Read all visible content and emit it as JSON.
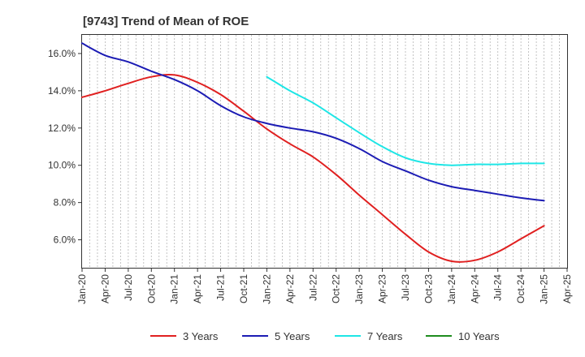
{
  "chart_data": {
    "type": "line",
    "title": "[9743]  Trend of Mean of ROE",
    "xlabel": "",
    "ylabel": "",
    "x_tick_labels": [
      "Jan-20",
      "Apr-20",
      "Jul-20",
      "Oct-20",
      "Jan-21",
      "Apr-21",
      "Jul-21",
      "Oct-21",
      "Jan-22",
      "Apr-22",
      "Jul-22",
      "Oct-22",
      "Jan-23",
      "Apr-23",
      "Jul-23",
      "Oct-23",
      "Jan-24",
      "Apr-24",
      "Jul-24",
      "Oct-24",
      "Jan-25",
      "Apr-25"
    ],
    "y_ticks": [
      6.0,
      8.0,
      10.0,
      12.0,
      14.0,
      16.0
    ],
    "y_tick_labels": [
      "6.0%",
      "8.0%",
      "10.0%",
      "12.0%",
      "14.0%",
      "16.0%"
    ],
    "ylim": [
      4.5,
      17.0
    ],
    "x_range_months": [
      0,
      63
    ],
    "grid": "vertical-dashed",
    "legend_position": "bottom",
    "series": [
      {
        "name": "3 Years",
        "color": "#e02020",
        "points": [
          [
            0,
            13.65
          ],
          [
            3,
            14.0
          ],
          [
            6,
            14.4
          ],
          [
            9,
            14.75
          ],
          [
            12,
            14.85
          ],
          [
            15,
            14.45
          ],
          [
            18,
            13.8
          ],
          [
            21,
            12.9
          ],
          [
            24,
            11.95
          ],
          [
            27,
            11.15
          ],
          [
            30,
            10.45
          ],
          [
            33,
            9.5
          ],
          [
            36,
            8.4
          ],
          [
            39,
            7.35
          ],
          [
            42,
            6.3
          ],
          [
            45,
            5.35
          ],
          [
            48,
            4.85
          ],
          [
            51,
            4.9
          ],
          [
            54,
            5.35
          ],
          [
            57,
            6.05
          ],
          [
            60,
            6.75
          ]
        ]
      },
      {
        "name": "5 Years",
        "color": "#1c1cb4",
        "points": [
          [
            0,
            16.55
          ],
          [
            3,
            15.9
          ],
          [
            6,
            15.55
          ],
          [
            9,
            15.05
          ],
          [
            12,
            14.6
          ],
          [
            15,
            14.0
          ],
          [
            18,
            13.2
          ],
          [
            21,
            12.6
          ],
          [
            24,
            12.25
          ],
          [
            27,
            12.0
          ],
          [
            30,
            11.8
          ],
          [
            33,
            11.45
          ],
          [
            36,
            10.9
          ],
          [
            39,
            10.2
          ],
          [
            42,
            9.7
          ],
          [
            45,
            9.2
          ],
          [
            48,
            8.85
          ],
          [
            51,
            8.65
          ],
          [
            54,
            8.45
          ],
          [
            57,
            8.25
          ],
          [
            60,
            8.1
          ]
        ]
      },
      {
        "name": "7 Years",
        "color": "#1ee6e6",
        "points": [
          [
            24,
            14.75
          ],
          [
            27,
            14.0
          ],
          [
            30,
            13.35
          ],
          [
            33,
            12.55
          ],
          [
            36,
            11.75
          ],
          [
            39,
            11.0
          ],
          [
            42,
            10.4
          ],
          [
            45,
            10.1
          ],
          [
            48,
            10.0
          ],
          [
            51,
            10.05
          ],
          [
            54,
            10.05
          ],
          [
            57,
            10.1
          ],
          [
            60,
            10.1
          ]
        ]
      },
      {
        "name": "10 Years",
        "color": "#1e8c1e",
        "points": []
      }
    ]
  }
}
